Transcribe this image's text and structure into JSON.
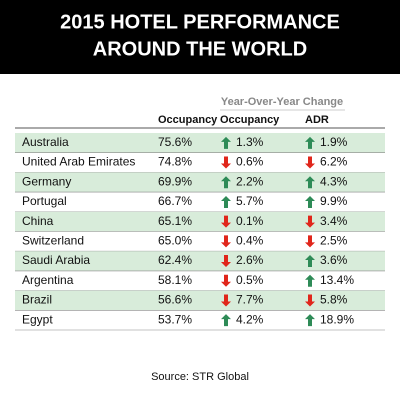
{
  "header": {
    "title": [
      "2015 HOTEL PERFORMANCE",
      "AROUND THE WORLD"
    ]
  },
  "table": {
    "group_header": "Year-Over-Year Change",
    "columns": [
      "Occupancy",
      "Occupancy",
      "ADR"
    ],
    "rows": [
      {
        "name": "Australia",
        "occupancy": "75.6%",
        "occupancy_change": {
          "direction": "up",
          "text": "1.3%"
        },
        "adr_change": {
          "direction": "up",
          "text": "1.9%"
        }
      },
      {
        "name": "United Arab Emirates",
        "occupancy": "74.8%",
        "occupancy_change": {
          "direction": "down",
          "text": "0.6%"
        },
        "adr_change": {
          "direction": "down",
          "text": "6.2%"
        }
      },
      {
        "name": "Germany",
        "occupancy": "69.9%",
        "occupancy_change": {
          "direction": "up",
          "text": "2.2%"
        },
        "adr_change": {
          "direction": "up",
          "text": "4.3%"
        }
      },
      {
        "name": "Portugal",
        "occupancy": "66.7%",
        "occupancy_change": {
          "direction": "up",
          "text": "5.7%"
        },
        "adr_change": {
          "direction": "up",
          "text": "9.9%"
        }
      },
      {
        "name": "China",
        "occupancy": "65.1%",
        "occupancy_change": {
          "direction": "down",
          "text": "0.1%"
        },
        "adr_change": {
          "direction": "down",
          "text": "3.4%"
        }
      },
      {
        "name": "Switzerland",
        "occupancy": "65.0%",
        "occupancy_change": {
          "direction": "down",
          "text": "0.4%"
        },
        "adr_change": {
          "direction": "down",
          "text": "2.5%"
        }
      },
      {
        "name": "Saudi Arabia",
        "occupancy": "62.4%",
        "occupancy_change": {
          "direction": "down",
          "text": "2.6%"
        },
        "adr_change": {
          "direction": "up",
          "text": "3.6%"
        }
      },
      {
        "name": "Argentina",
        "occupancy": "58.1%",
        "occupancy_change": {
          "direction": "down",
          "text": "0.5%"
        },
        "adr_change": {
          "direction": "up",
          "text": "13.4%"
        }
      },
      {
        "name": "Brazil",
        "occupancy": "56.6%",
        "occupancy_change": {
          "direction": "down",
          "text": "7.7%"
        },
        "adr_change": {
          "direction": "down",
          "text": "5.8%"
        }
      },
      {
        "name": "Egypt",
        "occupancy": "53.7%",
        "occupancy_change": {
          "direction": "up",
          "text": "4.2%"
        },
        "adr_change": {
          "direction": "up",
          "text": "18.9%"
        }
      }
    ]
  },
  "footer": {
    "source": "Source: STR Global"
  }
}
